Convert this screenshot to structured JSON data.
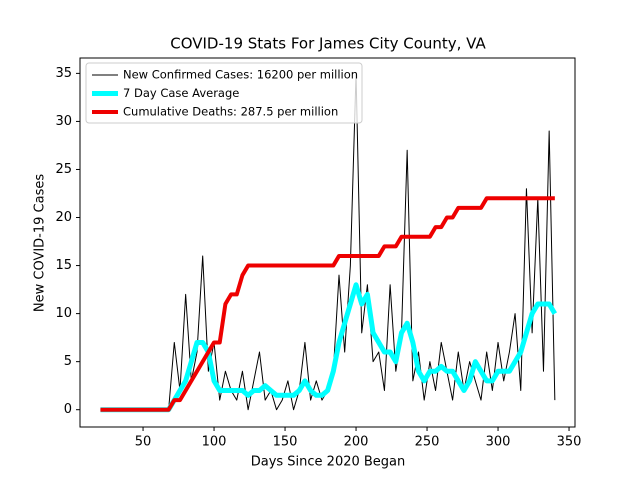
{
  "chart_data": {
    "type": "line",
    "title": "COVID-19 Stats For James City County, VA",
    "xlabel": "Days Since 2020 Began",
    "ylabel": "New COVID-19 Cases",
    "x": [
      20,
      24,
      28,
      32,
      36,
      40,
      44,
      48,
      52,
      56,
      60,
      64,
      68,
      72,
      76,
      80,
      84,
      88,
      92,
      96,
      100,
      104,
      108,
      112,
      116,
      120,
      124,
      128,
      132,
      136,
      140,
      144,
      148,
      152,
      156,
      160,
      164,
      168,
      172,
      176,
      180,
      184,
      188,
      192,
      196,
      200,
      204,
      208,
      212,
      216,
      220,
      224,
      228,
      232,
      236,
      240,
      244,
      248,
      252,
      256,
      260,
      264,
      268,
      272,
      276,
      280,
      284,
      288,
      292,
      296,
      300,
      304,
      308,
      312,
      316,
      320,
      324,
      328,
      332,
      336,
      340
    ],
    "series": [
      {
        "name": "New Confirmed Cases: 16200 per million",
        "color": "#000000",
        "line_width": 1,
        "values": [
          0,
          0,
          0,
          0,
          0,
          0,
          0,
          0,
          0,
          0,
          0,
          0,
          0,
          7,
          2,
          12,
          3,
          6,
          16,
          4,
          7,
          1,
          4,
          2,
          1,
          4,
          0,
          3,
          6,
          1,
          2,
          0,
          1,
          3,
          0,
          2,
          7,
          1,
          3,
          1,
          2,
          4,
          14,
          6,
          15,
          35,
          8,
          13,
          5,
          6,
          2,
          13,
          4,
          8,
          27,
          3,
          6,
          1,
          5,
          2,
          7,
          4,
          1,
          6,
          2,
          5,
          3,
          1,
          6,
          2,
          7,
          3,
          6,
          10,
          2,
          23,
          8,
          22,
          4,
          29,
          1
        ]
      },
      {
        "name": "7 Day Case Average",
        "color": "#00ffff",
        "line_width": 5,
        "values": [
          0,
          0,
          0,
          0,
          0,
          0,
          0,
          0,
          0,
          0,
          0,
          0,
          0,
          1,
          2,
          3,
          5,
          7,
          7,
          6,
          3,
          2,
          2,
          2,
          2,
          2,
          1.5,
          2,
          2,
          2.5,
          2,
          1.5,
          1.5,
          1.5,
          1.5,
          2,
          3,
          2,
          1.5,
          1.5,
          2,
          4,
          7,
          9,
          11,
          13,
          11,
          12,
          8,
          7,
          6,
          6,
          5,
          8,
          9,
          7,
          4,
          3,
          4,
          4,
          4.5,
          4,
          4,
          3,
          2,
          3,
          5,
          4,
          3,
          3,
          4,
          4,
          4,
          5,
          6,
          8,
          10,
          11,
          11,
          11,
          10
        ]
      },
      {
        "name": "Cumulative Deaths: 287.5 per million",
        "color": "#ee0000",
        "line_width": 4,
        "values": [
          0,
          0,
          0,
          0,
          0,
          0,
          0,
          0,
          0,
          0,
          0,
          0,
          0,
          1,
          1,
          2,
          3,
          4,
          5,
          6,
          7,
          7,
          11,
          12,
          12,
          14,
          15,
          15,
          15,
          15,
          15,
          15,
          15,
          15,
          15,
          15,
          15,
          15,
          15,
          15,
          15,
          15,
          16,
          16,
          16,
          16,
          16,
          16,
          16,
          16,
          17,
          17,
          17,
          18,
          18,
          18,
          18,
          18,
          18,
          19,
          19,
          20,
          20,
          21,
          21,
          21,
          21,
          21,
          22,
          22,
          22,
          22,
          22,
          22,
          22,
          22,
          22,
          22,
          22,
          22,
          22
        ]
      }
    ],
    "xlim": [
      5.6,
      354.2
    ],
    "ylim": [
      -1.8,
      36.6
    ],
    "xticks": [
      50,
      100,
      150,
      200,
      250,
      300,
      350
    ],
    "yticks": [
      0,
      5,
      10,
      15,
      20,
      25,
      30,
      35
    ],
    "legend": "upper left"
  }
}
